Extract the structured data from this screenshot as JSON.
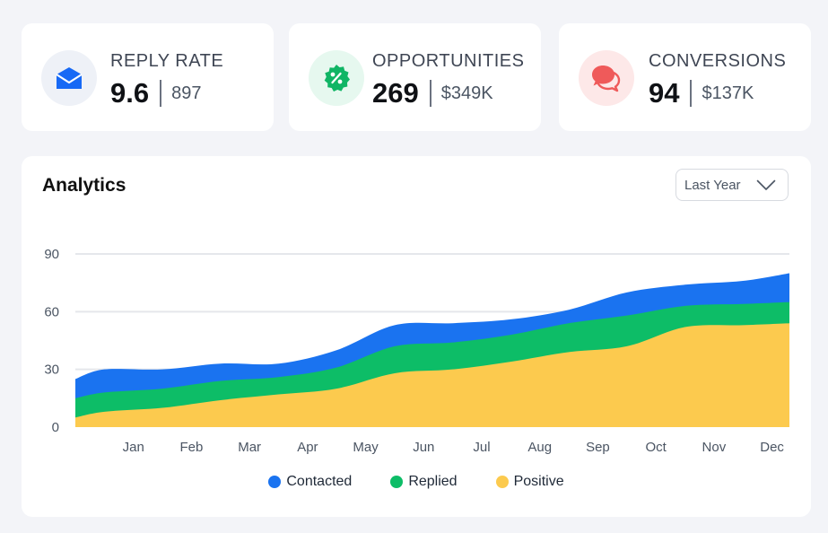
{
  "stats": [
    {
      "label": "REPLY RATE",
      "main": "9.6",
      "sub": "897",
      "icon": "envelope-icon",
      "icon_color": "#1769f5",
      "icon_bg": "#eef1f7"
    },
    {
      "label": "OPPORTUNITIES",
      "main": "269",
      "sub": "$349K",
      "icon": "percent-icon",
      "icon_color": "#10b565",
      "icon_bg": "#e6f8ef"
    },
    {
      "label": "CONVERSIONS",
      "main": "94",
      "sub": "$137K",
      "icon": "chat-bubbles-icon",
      "icon_color": "#ef5a5a",
      "icon_bg": "#fde8e8"
    }
  ],
  "analytics": {
    "title": "Analytics",
    "filter": {
      "selected": "Last Year"
    }
  },
  "chart_data": {
    "type": "area",
    "stacked": true,
    "title": "Analytics",
    "xlabel": "",
    "ylabel": "",
    "ylim": [
      0,
      90
    ],
    "yticks": [
      0,
      30,
      60,
      90
    ],
    "grid": true,
    "legend_position": "bottom-center",
    "x_tick_labels": [
      "Jan",
      "Feb",
      "Mar",
      "Apr",
      "May",
      "Jun",
      "Jul",
      "Aug",
      "Sep",
      "Oct",
      "Nov",
      "Dec"
    ],
    "x": [
      0,
      0.5,
      1.5,
      2.5,
      3.5,
      4.5,
      5.5,
      6.5,
      7.5,
      8.5,
      9.5,
      10.5,
      11.5,
      12.3
    ],
    "series": [
      {
        "name": "Contacted",
        "color": "#1a73f0",
        "values": [
          10,
          12,
          10,
          9,
          7,
          9,
          11,
          10,
          8,
          7,
          12,
          11,
          12,
          15
        ]
      },
      {
        "name": "Replied",
        "color": "#0dbd67",
        "values": [
          10,
          10,
          10,
          10,
          9,
          11,
          14,
          14,
          14,
          15,
          16,
          11,
          11,
          11
        ]
      },
      {
        "name": "Positive",
        "color": "#fcca4e",
        "values": [
          5,
          8,
          10,
          14,
          17,
          20,
          28,
          30,
          34,
          39,
          42,
          52,
          53,
          54
        ]
      }
    ]
  }
}
